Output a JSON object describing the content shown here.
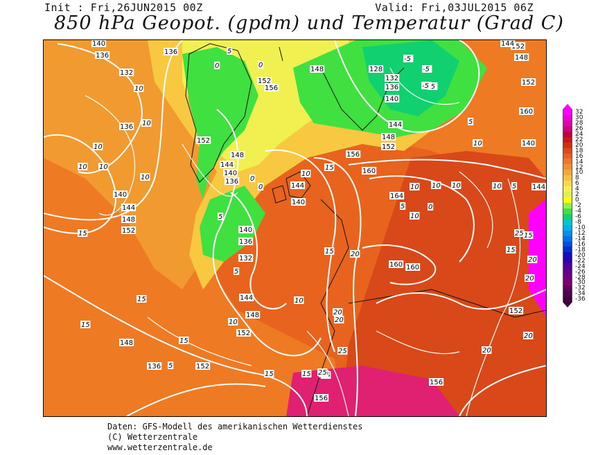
{
  "header": {
    "init": "Init : Fri,26JUN2015 00Z",
    "valid": "Valid: Fri,03JUL2015 06Z",
    "title": "850 hPa Geopot. (gpdm) und Temperatur (Grad C)"
  },
  "legend": {
    "values": [
      "32",
      "30",
      "28",
      "26",
      "24",
      "22",
      "20",
      "18",
      "16",
      "14",
      "12",
      "10",
      "8",
      "6",
      "4",
      "2",
      "0",
      "-2",
      "-4",
      "-6",
      "-8",
      "-10",
      "-12",
      "-14",
      "-16",
      "-18",
      "-20",
      "-22",
      "-24",
      "-26",
      "-28",
      "-30",
      "-32",
      "-34",
      "-36"
    ],
    "colors": [
      "#ff00ff",
      "#f000d8",
      "#e000b0",
      "#d00080",
      "#c00040",
      "#c81818",
      "#d03010",
      "#e04818",
      "#e86020",
      "#f07828",
      "#f09030",
      "#f0a838",
      "#f8c040",
      "#f8d848",
      "#f0f050",
      "#e0f050",
      "#ffff00",
      "#90ee50",
      "#40e040",
      "#10d070",
      "#00c8c8",
      "#00b0f0",
      "#0090f0",
      "#0070f0",
      "#0050e0",
      "#0030d0",
      "#1010c0",
      "#3000b0",
      "#5000a0",
      "#600090",
      "#700080",
      "#800070",
      "#600060",
      "#500050",
      "#400040"
    ]
  },
  "map": {
    "geopotential_labels": [
      "140",
      "136",
      "132",
      "136",
      "136",
      "148",
      "156",
      "152",
      "144",
      "140",
      "136",
      "148",
      "152",
      "128",
      "132",
      "136",
      "140",
      "144",
      "148",
      "152",
      "156",
      "160",
      "164",
      "144",
      "140",
      "144",
      "148",
      "152",
      "140",
      "136",
      "132",
      "144",
      "148",
      "152",
      "160",
      "160",
      "152",
      "156",
      "156",
      "152",
      "144",
      "148",
      "136",
      "140",
      "152",
      "160",
      "140",
      "144",
      "148",
      "152"
    ],
    "temperature_labels": [
      "10",
      "10",
      "10",
      "10",
      "10",
      "10",
      "0",
      "5",
      "0",
      "-5",
      "-5",
      "-5",
      "-5",
      "0",
      "5",
      "10",
      "15",
      "10",
      "5",
      "0",
      "5",
      "10",
      "15",
      "20",
      "25",
      "20",
      "20",
      "15",
      "10",
      "10",
      "10",
      "10",
      "5",
      "15",
      "20",
      "25",
      "20",
      "15",
      "10",
      "15",
      "20",
      "25",
      "15",
      "15",
      "15",
      "15",
      "5",
      "5",
      "0",
      "15",
      "20",
      "20",
      "10"
    ]
  },
  "footer": {
    "line1": "Daten: GFS-Modell des amerikanischen Wetterdienstes",
    "line2": "(C) Wetterzentrale",
    "line3": "www.wetterzentrale.de"
  }
}
